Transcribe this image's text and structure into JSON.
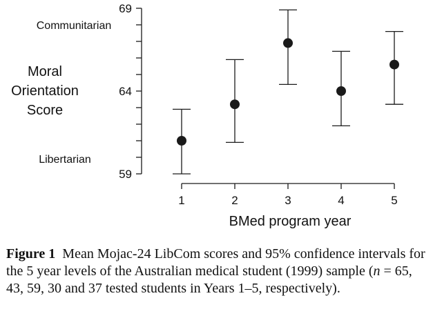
{
  "chart_data": {
    "type": "scatter",
    "subtype": "error-bar",
    "categories": [
      "1",
      "2",
      "3",
      "4",
      "5"
    ],
    "series": [
      {
        "values": [
          61.0,
          63.2,
          66.9,
          64.0,
          65.6
        ],
        "ci_low": [
          59.0,
          60.9,
          64.4,
          61.9,
          63.2
        ],
        "ci_high": [
          62.9,
          65.9,
          68.9,
          66.4,
          67.6
        ]
      }
    ],
    "xlabel": "BMed program year",
    "ylabel_lines": [
      "Moral",
      "Orientation",
      "Score"
    ],
    "ylim": [
      59,
      69
    ],
    "yticks_labeled": [
      59,
      64,
      69
    ],
    "yticks_minor": [
      60,
      61,
      62,
      63,
      65,
      66,
      67,
      68
    ],
    "annotations": {
      "top": "Communitarian",
      "bottom": "Libertarian"
    },
    "grid": false,
    "colors": {
      "marker": "#1a1a1a",
      "axis": "#1a1a1a"
    }
  },
  "caption": {
    "label": "Figure 1",
    "text_before_n": "Mean Mojac-24 LibCom scores and 95% confidence intervals for the 5 year levels of the Australian medical student (1999) sample (",
    "n_symbol": "n",
    "text_after_n": " = 65, 43, 59, 30 and 37 tested students in Years 1–5, respectively)."
  }
}
